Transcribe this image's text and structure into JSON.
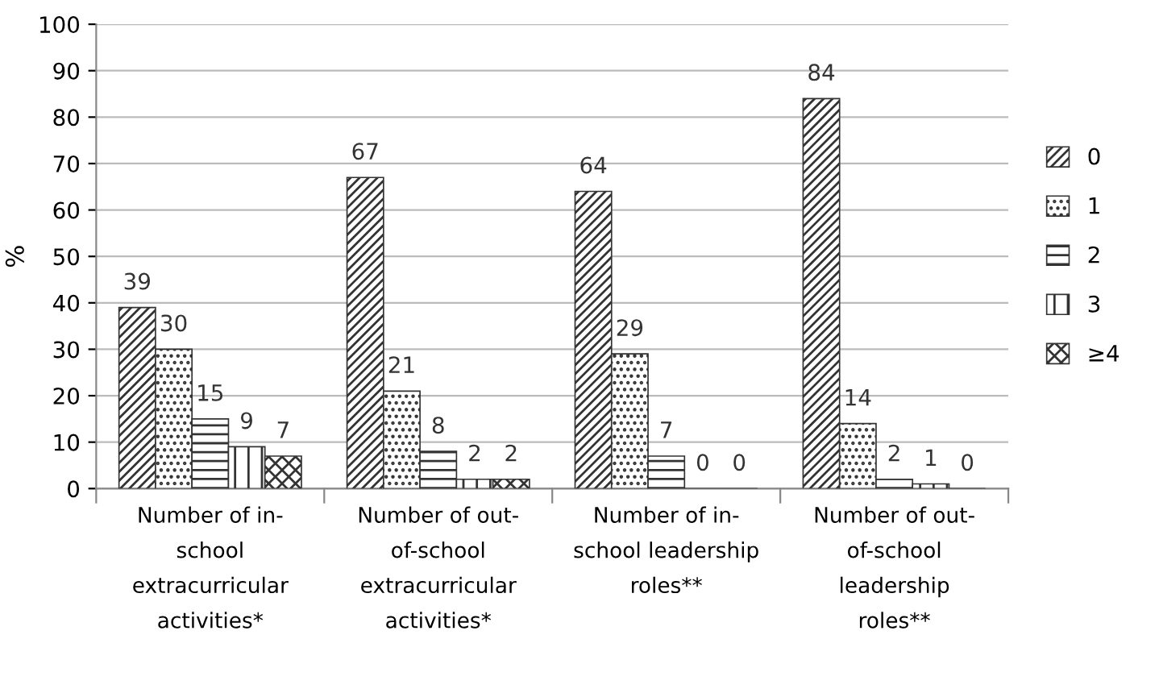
{
  "chart_data": {
    "type": "bar",
    "ylabel": "%",
    "categories": [
      "Number of in-\nschool\nextracurricular\nactivities*",
      "Number of out-\nof-school\nextracurricular\nactivities*",
      "Number of in-\nschool leadership\nroles**",
      "Number of out-\nof-school\nleadership\nroles**"
    ],
    "series": [
      {
        "name": "0",
        "color": "#333333",
        "values": [
          39,
          67,
          64,
          84
        ]
      },
      {
        "name": "1",
        "color": "#333333",
        "values": [
          30,
          21,
          29,
          14
        ]
      },
      {
        "name": "2",
        "color": "#333333",
        "values": [
          15,
          8,
          7,
          2
        ]
      },
      {
        "name": "3",
        "color": "#333333",
        "values": [
          9,
          2,
          0,
          1
        ]
      },
      {
        "name": "≥4",
        "color": "#333333",
        "values": [
          7,
          2,
          0,
          0
        ]
      }
    ],
    "ylim": [
      0,
      100
    ],
    "yticks": [
      0,
      10,
      20,
      30,
      40,
      50,
      60,
      70,
      80,
      90,
      100
    ],
    "grid": "y",
    "legend": "right",
    "data_labels": true
  }
}
